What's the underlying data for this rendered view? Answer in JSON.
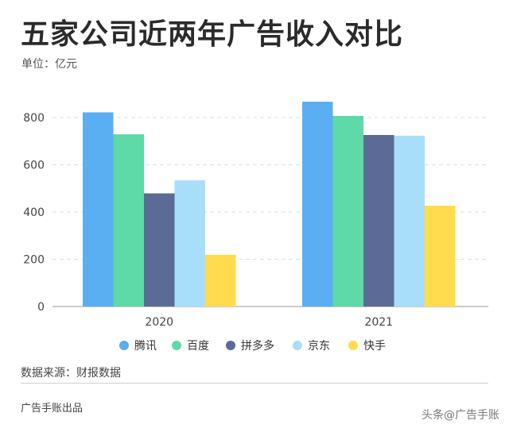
{
  "header": {
    "title": "五家公司近两年广告收入对比",
    "unit_label": "单位：亿元"
  },
  "footer": {
    "source": "数据来源：财报数据",
    "credit": "广告手账出品",
    "watermark": "头条@广告手账"
  },
  "chart_data": {
    "type": "bar",
    "categories": [
      "2020",
      "2021"
    ],
    "series": [
      {
        "name": "腾讯",
        "color": "#5aaef2",
        "values": [
          822,
          867
        ]
      },
      {
        "name": "百度",
        "color": "#5ddaa8",
        "values": [
          729,
          807
        ]
      },
      {
        "name": "拼多多",
        "color": "#5b6b95",
        "values": [
          479,
          726
        ]
      },
      {
        "name": "京东",
        "color": "#a8defa",
        "values": [
          534,
          723
        ]
      },
      {
        "name": "快手",
        "color": "#ffdb4d",
        "values": [
          219,
          427
        ]
      }
    ],
    "ylim": [
      0,
      900
    ],
    "yticks": [
      0,
      200,
      400,
      600,
      800
    ],
    "grid": true,
    "legend": "bottom"
  }
}
